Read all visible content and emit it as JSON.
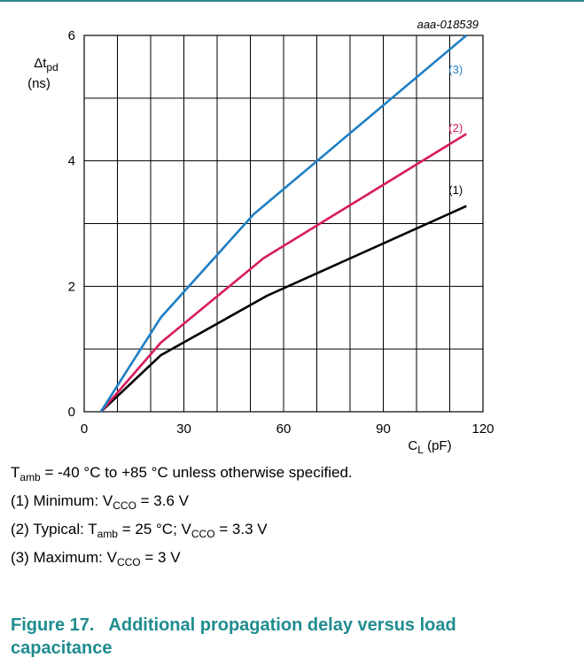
{
  "chart_data": {
    "type": "line",
    "ref_id": "aaa-018539",
    "xlabel": {
      "main": "C",
      "sub": "L",
      "tail": " (pF)"
    },
    "ylabel": {
      "line1_main": "Δt",
      "line1_sub": "pd",
      "line2": "(ns)"
    },
    "xlim": [
      0,
      120
    ],
    "ylim": [
      0,
      6
    ],
    "x_ticks": [
      0,
      30,
      60,
      90,
      120
    ],
    "y_ticks": [
      0,
      2,
      4,
      6
    ],
    "grid": true,
    "series": [
      {
        "name": "(1)",
        "color": "#000000",
        "points": [
          [
            5,
            0
          ],
          [
            23,
            0.9
          ],
          [
            55,
            1.85
          ],
          [
            115,
            3.28
          ]
        ]
      },
      {
        "name": "(2)",
        "color": "#d81b60",
        "points": [
          [
            5,
            0
          ],
          [
            23,
            1.1
          ],
          [
            54,
            2.45
          ],
          [
            115,
            4.43
          ]
        ]
      },
      {
        "name": "(3)",
        "color": "#1f7fc4",
        "points": [
          [
            5,
            0
          ],
          [
            23,
            1.5
          ],
          [
            51,
            3.15
          ],
          [
            115,
            6.0
          ]
        ]
      }
    ]
  },
  "notes": {
    "n0": {
      "a": "T",
      "a_sub": "amb",
      "b": " = -40 °C to +85 °C unless otherwise specified."
    },
    "n1": {
      "a": "(1) Minimum: V",
      "a_sub": "CCO",
      "b": " = 3.6 V"
    },
    "n2": {
      "a": "(2) Typical: T",
      "a_sub": "amb",
      "b": " = 25 °C; V",
      "b_sub": "CCO",
      "c": " = 3.3 V"
    },
    "n3": {
      "a": "(3) Maximum: V",
      "a_sub": "CCO",
      "b": " = 3 V"
    }
  },
  "caption": {
    "label": "Figure 17.",
    "title": "Additional propagation delay versus load capacitance"
  }
}
